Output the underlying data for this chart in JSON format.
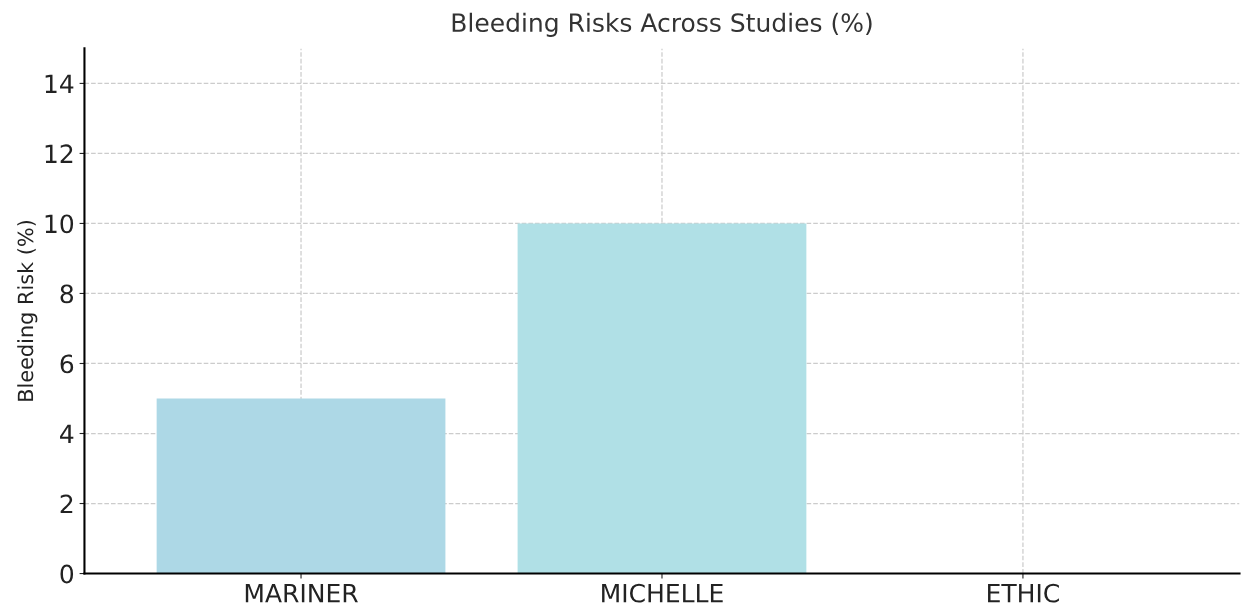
{
  "chart_data": {
    "type": "bar",
    "title": "Bleeding Risks Across Studies (%)",
    "ylabel": "Bleeding Risk (%)",
    "categories": [
      "MARINER",
      "MICHELLE",
      "ETHIC"
    ],
    "values": [
      5,
      10,
      0
    ],
    "colors": [
      "#add8e6",
      "#b0e0e6",
      "#afeeee"
    ],
    "ylim": [
      0,
      15
    ],
    "yticks": [
      0,
      2,
      4,
      6,
      8,
      10,
      12,
      14
    ],
    "grid": true
  }
}
